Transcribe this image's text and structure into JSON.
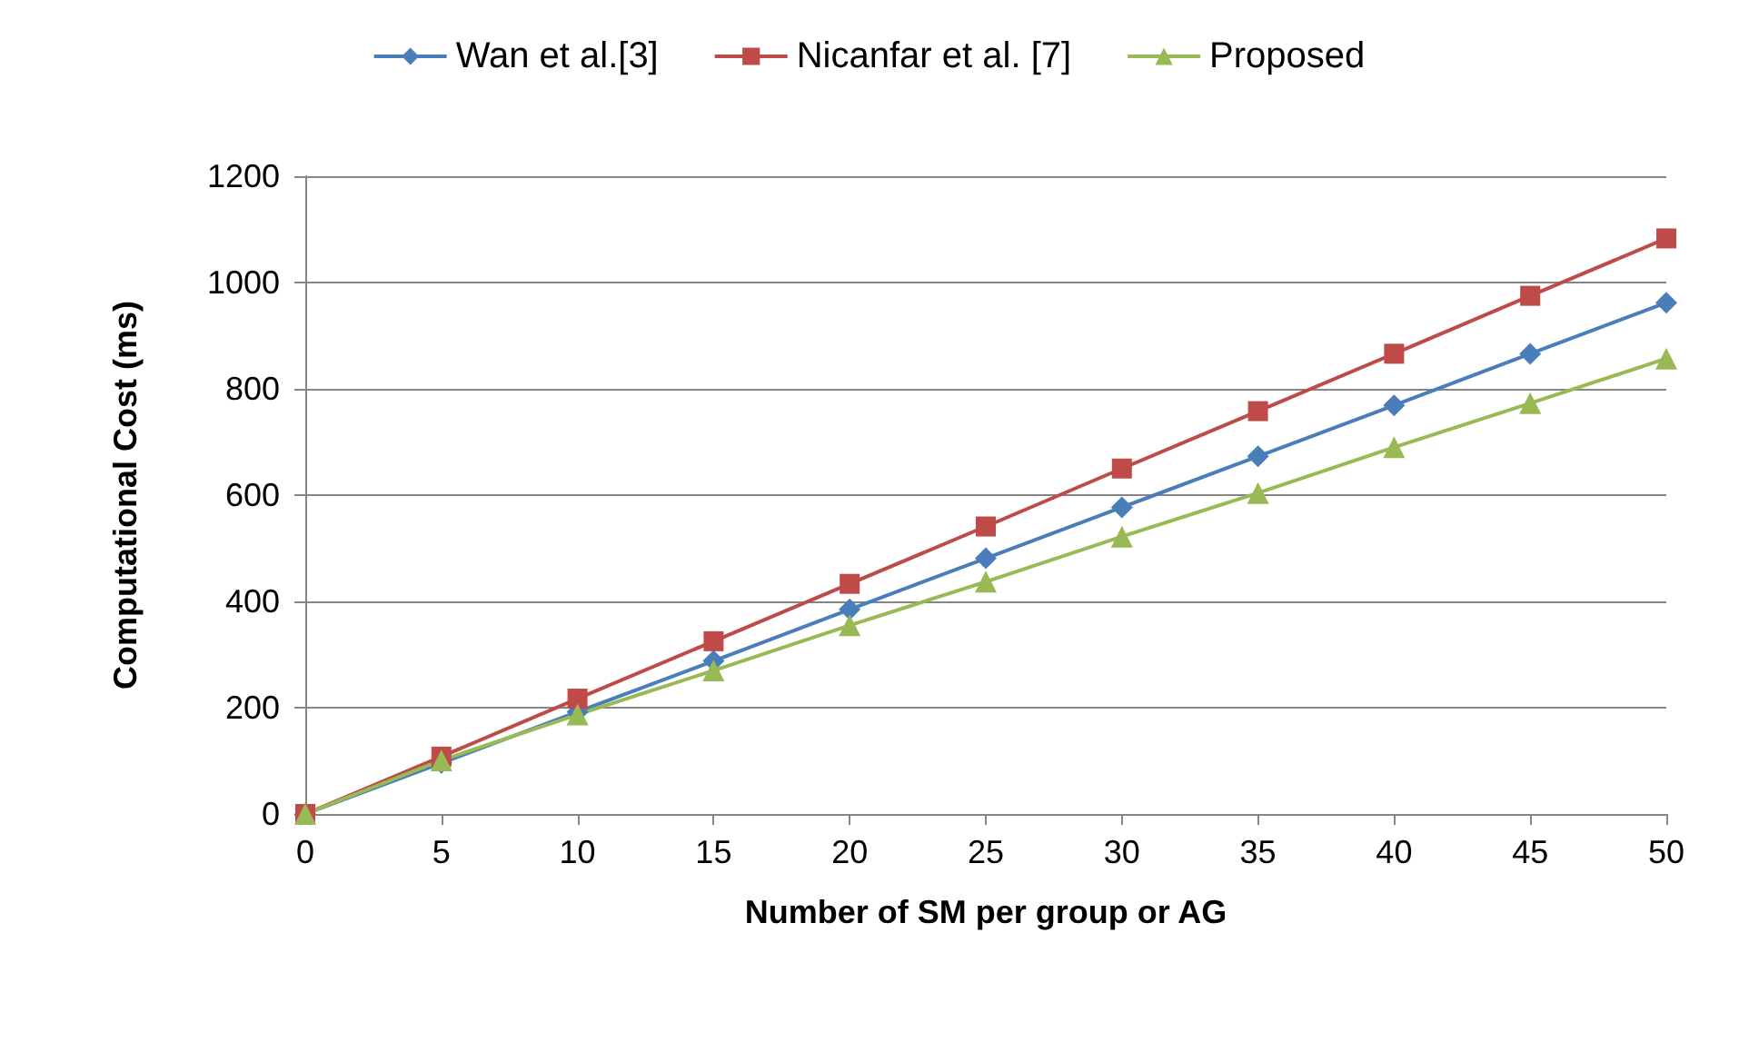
{
  "chart_data": {
    "type": "line",
    "xlabel": "Number of SM per group or AG",
    "ylabel": "Computational Cost (ms)",
    "x": [
      0,
      5,
      10,
      15,
      20,
      25,
      30,
      35,
      40,
      45,
      50
    ],
    "series": [
      {
        "name": "Wan et al.[3]",
        "color": "#4a7ebb",
        "marker": "diamond",
        "values": [
          0,
          96,
          192,
          288,
          385,
          481,
          577,
          673,
          769,
          866,
          962
        ]
      },
      {
        "name": "Nicanfar et al. [7]",
        "color": "#be4b48",
        "marker": "square",
        "values": [
          0,
          108,
          217,
          325,
          433,
          541,
          650,
          758,
          866,
          975,
          1083
        ]
      },
      {
        "name": "Proposed",
        "color": "#98b954",
        "marker": "triangle",
        "values": [
          0,
          101,
          187,
          270,
          355,
          437,
          522,
          604,
          690,
          773,
          857
        ]
      }
    ],
    "xlim": [
      0,
      50
    ],
    "xticks": [
      0,
      5,
      10,
      15,
      20,
      25,
      30,
      35,
      40,
      45,
      50
    ],
    "ylim": [
      0,
      1200
    ],
    "yticks": [
      0,
      200,
      400,
      600,
      800,
      1000,
      1200
    ],
    "grid": "y",
    "legend": "top",
    "line_style": "solid"
  }
}
